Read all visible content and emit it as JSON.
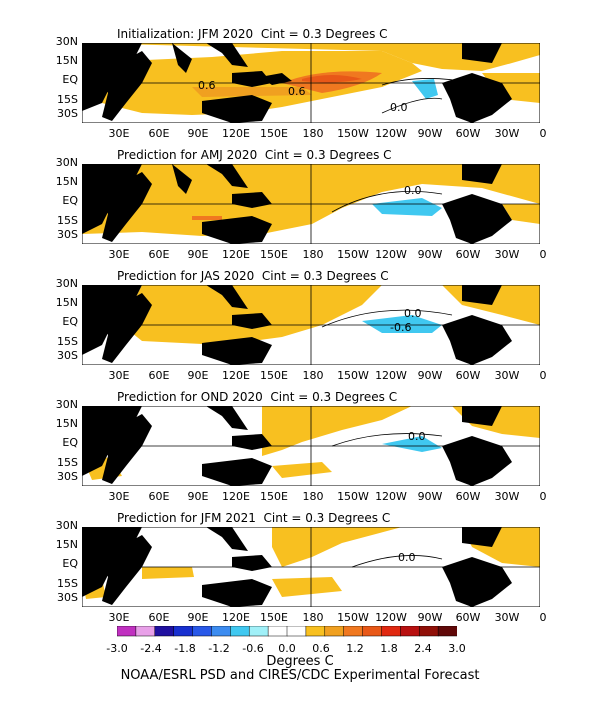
{
  "panels": [
    {
      "title": "Initialization: JFM 2020  Cint = 0.3 Degrees C",
      "contour_labels": [
        "0.6",
        "0.6",
        "0.0"
      ]
    },
    {
      "title": "Prediction for AMJ 2020  Cint = 0.3 Degrees C",
      "contour_labels": [
        "0.0"
      ]
    },
    {
      "title": "Prediction for JAS 2020  Cint = 0.3 Degrees C",
      "contour_labels": [
        "0.0",
        "-0.6"
      ]
    },
    {
      "title": "Prediction for OND 2020  Cint = 0.3 Degrees C",
      "contour_labels": [
        "0.0"
      ]
    },
    {
      "title": "Prediction for JFM 2021  Cint = 0.3 Degrees C",
      "contour_labels": [
        "0.0"
      ]
    }
  ],
  "lat_labels": [
    "30N",
    "15N",
    "EQ",
    "15S",
    "30S"
  ],
  "lon_labels": [
    "30E",
    "60E",
    "90E",
    "120E",
    "150E",
    "180",
    "150W",
    "120W",
    "90W",
    "60W",
    "30W",
    "0"
  ],
  "colorbar": {
    "labels": [
      "-3.0",
      "-2.4",
      "-1.8",
      "-1.2",
      "-0.6",
      "0.0",
      "0.6",
      "1.2",
      "1.8",
      "2.4",
      "3.0"
    ],
    "colors": [
      "#c030c0",
      "#e8a0e8",
      "#2010a0",
      "#1830d0",
      "#2858e8",
      "#3c8cf0",
      "#40c8f0",
      "#a0f0f8",
      "#ffffff",
      "#ffffff",
      "#f8c020",
      "#f0a020",
      "#f07820",
      "#e85818",
      "#e02810",
      "#b81010",
      "#901008",
      "#600808"
    ],
    "units": "Degrees C"
  },
  "footer": "NOAA/ESRL PSD and CIRES/CDC Experimental Forecast",
  "colors": {
    "land": "#000000",
    "warm": "#f8c020",
    "warm2": "#f0a020",
    "warm3": "#f07820",
    "cool": "#40c8f0",
    "cool2": "#3c8cf0",
    "ocean": "#ffffff"
  }
}
